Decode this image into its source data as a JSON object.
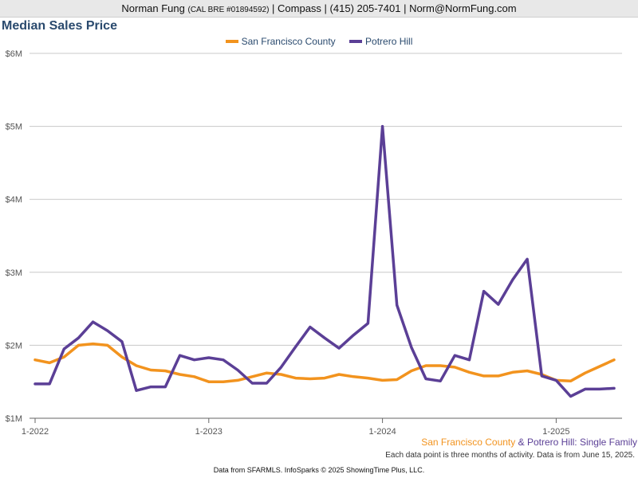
{
  "header": {
    "agent_name": "Norman Fung",
    "license": "(CAL BRE #01894592)",
    "brokerage": "| Compass |",
    "phone": "(415) 205-7401",
    "email": "| Norm@NormFung.com"
  },
  "captions": {
    "series_a": "San Francisco County",
    "amp": " & ",
    "series_b": "Potrero Hill",
    "suffix": ": Single Family",
    "note": "Each data point is three months of activity. Data is from June 15, 2025."
  },
  "footer": "Data from SFARMLS. InfoSparks © 2025 ShowingTime Plus, LLC.",
  "colors": {
    "series_a": "#f2931e",
    "series_b": "#5b3f96",
    "grid": "#c8c8c8",
    "axis": "#666666"
  },
  "chart_data": {
    "type": "line",
    "title": "Median Sales Price",
    "xlabel": "",
    "ylabel": "",
    "ylim": [
      1,
      6
    ],
    "y_ticks": [
      1,
      2,
      3,
      4,
      5,
      6
    ],
    "y_tick_labels": [
      "$1M",
      "$2M",
      "$3M",
      "$4M",
      "$5M",
      "$6M"
    ],
    "x_start": "2022-01",
    "x_ticks": [
      {
        "month_index": 0,
        "label": "1-2022"
      },
      {
        "month_index": 12,
        "label": "1-2023"
      },
      {
        "month_index": 24,
        "label": "1-2024"
      },
      {
        "month_index": 36,
        "label": "1-2025"
      }
    ],
    "legend_position": "top-center",
    "grid": true,
    "x": [
      "2022-01",
      "2022-02",
      "2022-03",
      "2022-04",
      "2022-05",
      "2022-06",
      "2022-07",
      "2022-08",
      "2022-09",
      "2022-10",
      "2022-11",
      "2022-12",
      "2023-01",
      "2023-02",
      "2023-03",
      "2023-04",
      "2023-05",
      "2023-06",
      "2023-07",
      "2023-08",
      "2023-09",
      "2023-10",
      "2023-11",
      "2023-12",
      "2024-01",
      "2024-02",
      "2024-03",
      "2024-04",
      "2024-05",
      "2024-06",
      "2024-07",
      "2024-08",
      "2024-09",
      "2024-10",
      "2024-11",
      "2024-12",
      "2025-01",
      "2025-02",
      "2025-03",
      "2025-04",
      "2025-05"
    ],
    "series": [
      {
        "name": "San Francisco County",
        "values": [
          1.8,
          1.76,
          1.84,
          2.0,
          2.02,
          2.0,
          1.84,
          1.72,
          1.66,
          1.65,
          1.6,
          1.57,
          1.5,
          1.5,
          1.52,
          1.57,
          1.62,
          1.6,
          1.55,
          1.54,
          1.55,
          1.6,
          1.57,
          1.55,
          1.52,
          1.53,
          1.65,
          1.72,
          1.72,
          1.7,
          1.63,
          1.58,
          1.58,
          1.63,
          1.65,
          1.6,
          1.52,
          1.51,
          1.62,
          1.71,
          1.8
        ]
      },
      {
        "name": "Potrero Hill",
        "values": [
          1.47,
          1.47,
          1.95,
          2.1,
          2.32,
          2.2,
          2.05,
          1.38,
          1.43,
          1.43,
          1.86,
          1.8,
          1.83,
          1.8,
          1.66,
          1.48,
          1.48,
          1.7,
          1.98,
          2.25,
          2.1,
          1.96,
          2.14,
          2.3,
          5.0,
          2.55,
          1.97,
          1.54,
          1.51,
          1.86,
          1.8,
          2.74,
          2.56,
          2.9,
          3.18,
          1.58,
          1.52,
          1.3,
          1.4,
          1.4,
          1.41
        ]
      }
    ]
  }
}
